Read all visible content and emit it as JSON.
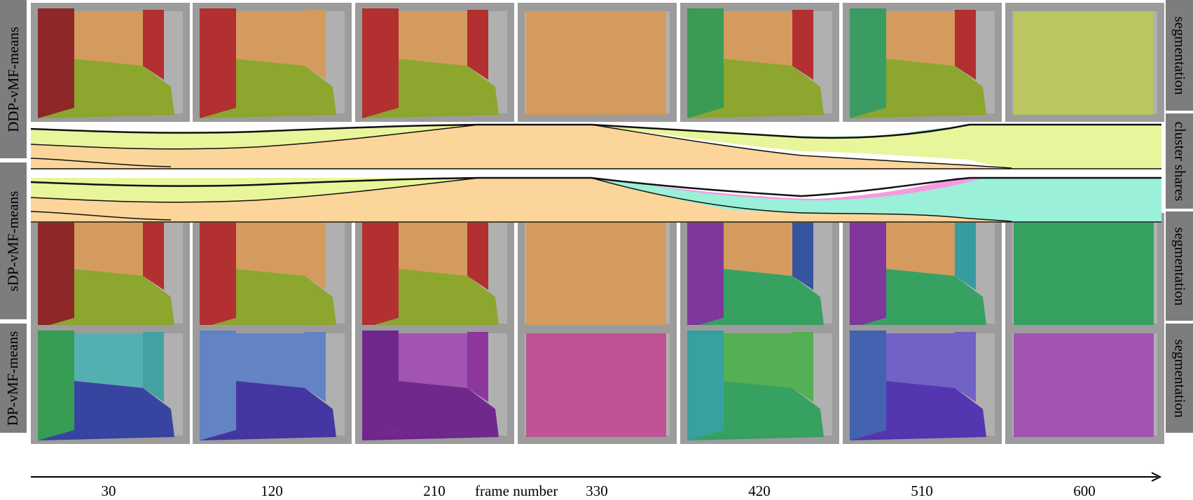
{
  "row_labels": {
    "ddp": "DDP-vMF-means",
    "sdp": "sDP-vMF-means",
    "dp": "DP-vMF-means"
  },
  "right_labels": {
    "seg1": "segmentation",
    "cluster_shares": "cluster shares",
    "seg2": "segmentation",
    "seg3": "segmentation"
  },
  "axis": {
    "title": "frame number",
    "ticks": [
      "30",
      "120",
      "210",
      "330",
      "420",
      "510",
      "600"
    ]
  },
  "rows": [
    {
      "name": "ddp",
      "frames": [
        {
          "left": "#8b1a1a",
          "wall": "#d79a55",
          "floor": "#8aa520",
          "right": "#b22222"
        },
        {
          "left": "#b22222",
          "wall": "#d79a55",
          "floor": "#8aa520",
          "right": "#d79a55"
        },
        {
          "left": "#b22222",
          "wall": "#d79a55",
          "floor": "#8aa520",
          "right": "#b22222"
        },
        {
          "left": "#8a8a8a",
          "wall": "#d79a55",
          "floor": "#d79a55",
          "right": "#8a8a8a"
        },
        {
          "left": "#2e9a4a",
          "wall": "#d79a55",
          "floor": "#8aa520",
          "right": "#b22222"
        },
        {
          "left": "#2e9a5a",
          "wall": "#d79a55",
          "floor": "#8aa520",
          "right": "#b22222"
        },
        {
          "left": "#bcc85a",
          "wall": "#bcc85a",
          "floor": "#bcc85a",
          "right": "#bcc85a"
        }
      ]
    },
    {
      "name": "sdp",
      "frames": [
        {
          "left": "#8b1a1a",
          "wall": "#d79a55",
          "floor": "#8aa520",
          "right": "#b22222"
        },
        {
          "left": "#b22222",
          "wall": "#d79a55",
          "floor": "#8aa520",
          "right": "#d79a55"
        },
        {
          "left": "#b22222",
          "wall": "#d79a55",
          "floor": "#8aa520",
          "right": "#b22222"
        },
        {
          "left": "#8a8a8a",
          "wall": "#d79a55",
          "floor": "#d79a55",
          "right": "#8a8a8a"
        },
        {
          "left": "#7a2a9a",
          "wall": "#d79a55",
          "floor": "#2aa05a",
          "right": "#2a4aa0"
        },
        {
          "left": "#7a2a9a",
          "wall": "#d79a55",
          "floor": "#2aa05a",
          "right": "#2a9aa0"
        },
        {
          "left": "#2aa05a",
          "wall": "#2aa05a",
          "floor": "#2aa05a",
          "right": "#2aa05a"
        }
      ]
    },
    {
      "name": "dp",
      "frames": [
        {
          "left": "#2a9a4a",
          "wall": "#4ab0b0",
          "floor": "#2a3aa0",
          "right": "#3aa0a0"
        },
        {
          "left": "#5a80c8",
          "wall": "#5a80c8",
          "floor": "#3a2aa0",
          "right": "#5a80c8"
        },
        {
          "left": "#6a1a8a",
          "wall": "#a04ab0",
          "floor": "#6a1a8a",
          "right": "#8a2a9a"
        },
        {
          "left": "#8a8a8a",
          "wall": "#c04a90",
          "floor": "#c04a90",
          "right": "#8a8a8a"
        },
        {
          "left": "#2aa0a0",
          "wall": "#4ab04a",
          "floor": "#2aa05a",
          "right": "#4ab04a"
        },
        {
          "left": "#3a5ab0",
          "wall": "#6a5ac8",
          "floor": "#4a2ab0",
          "right": "#6a5ac8"
        },
        {
          "left": "#a04ab0",
          "wall": "#a04ab0",
          "floor": "#a04ab0",
          "right": "#a04ab0"
        }
      ]
    }
  ]
}
